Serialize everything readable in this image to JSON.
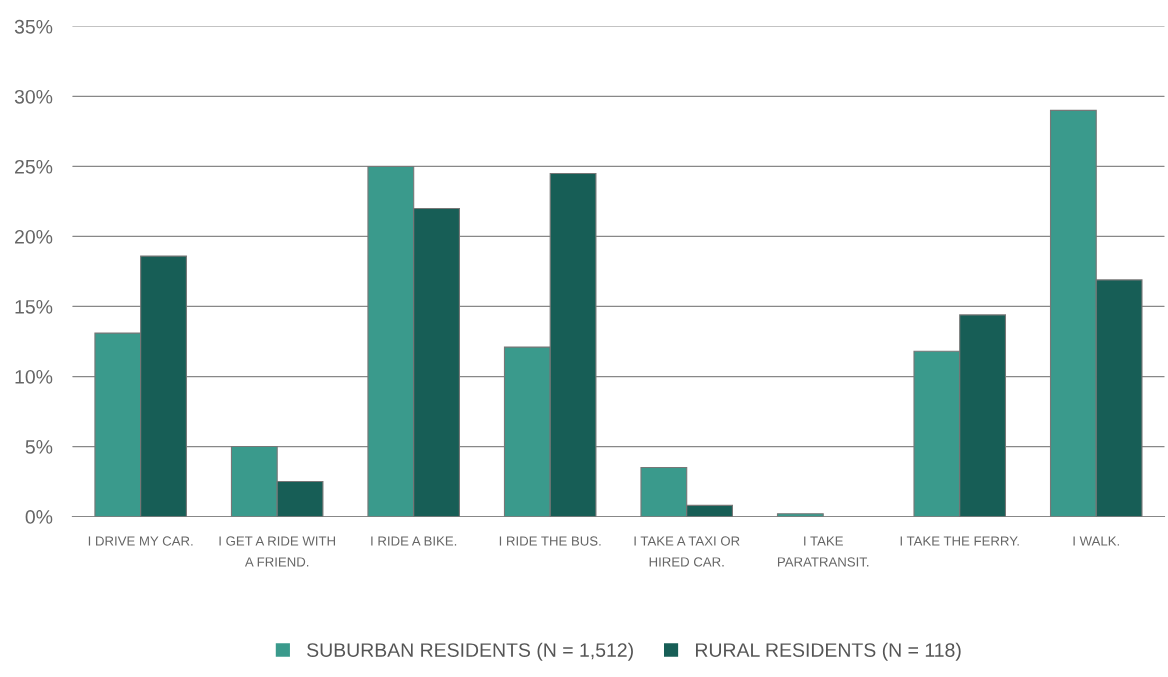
{
  "chart_data": {
    "type": "bar",
    "categories": [
      "I DRIVE MY CAR.",
      "I GET A RIDE WITH A FRIEND.",
      "I RIDE A BIKE.",
      "I RIDE THE BUS.",
      "I TAKE A TAXI OR HIRED CAR.",
      "I TAKE PARATRANSIT.",
      "I TAKE THE FERRY.",
      "I WALK."
    ],
    "series": [
      {
        "name": "SUBURBAN RESIDENTS (N = 1,512)",
        "color": "#3a9a8c",
        "values": [
          13.1,
          5.0,
          25.0,
          12.1,
          3.5,
          0.2,
          11.8,
          29.0
        ]
      },
      {
        "name": "RURAL RESIDENTS (N = 118)",
        "color": "#175e56",
        "values": [
          18.6,
          2.5,
          22.0,
          24.5,
          0.8,
          null,
          14.4,
          16.9
        ]
      }
    ],
    "ylim": [
      0,
      35
    ],
    "yticks": [
      {
        "value": 0,
        "label": "0%"
      },
      {
        "value": 5,
        "label": "5%"
      },
      {
        "value": 10,
        "label": "10%"
      },
      {
        "value": 15,
        "label": "15%"
      },
      {
        "value": 20,
        "label": "20%"
      },
      {
        "value": 25,
        "label": "25%"
      },
      {
        "value": 30,
        "label": "30%"
      },
      {
        "value": 35,
        "label": "35%"
      }
    ],
    "grid": "y",
    "legend": "bottom"
  }
}
